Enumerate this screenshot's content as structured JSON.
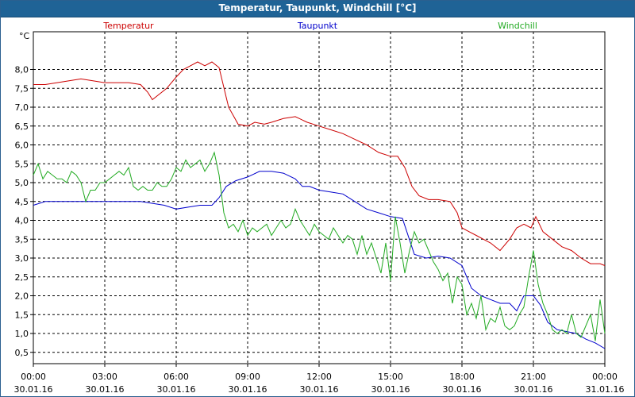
{
  "window": {
    "title": "Temperatur, Taupunkt, Windchill [°C]"
  },
  "chart_data": {
    "type": "line",
    "title": "Temperatur, Taupunkt, Windchill [°C]",
    "ylabel": "°C",
    "ylim": [
      0.2,
      9.0
    ],
    "xlim": [
      0,
      24
    ],
    "grid": true,
    "legend_position": "top",
    "yticks": [
      0.5,
      1.0,
      1.5,
      2.0,
      2.5,
      3.0,
      3.5,
      4.0,
      4.5,
      5.0,
      5.5,
      6.0,
      6.5,
      7.0,
      7.5,
      8.0
    ],
    "ytick_labels": [
      "0,5",
      "1,0",
      "1,5",
      "2,0",
      "2,5",
      "3,0",
      "3,5",
      "4,0",
      "4,5",
      "5,0",
      "5,5",
      "6,0",
      "6,5",
      "7,0",
      "7,5",
      "8,0"
    ],
    "xticks": [
      {
        "x": 0,
        "time": "00:00",
        "date": "30.01.16"
      },
      {
        "x": 3,
        "time": "03:00",
        "date": "30.01.16"
      },
      {
        "x": 6,
        "time": "06:00",
        "date": "30.01.16"
      },
      {
        "x": 9,
        "time": "09:00",
        "date": "30.01.16"
      },
      {
        "x": 12,
        "time": "12:00",
        "date": "30.01.16"
      },
      {
        "x": 15,
        "time": "15:00",
        "date": "30.01.16"
      },
      {
        "x": 18,
        "time": "18:00",
        "date": "30.01.16"
      },
      {
        "x": 21,
        "time": "21:00",
        "date": "30.01.16"
      },
      {
        "x": 24,
        "time": "00:00",
        "date": "31.01.16"
      }
    ],
    "series": [
      {
        "name": "Temperatur",
        "color": "#cc0000",
        "x": [
          0,
          0.5,
          1,
          1.5,
          2,
          2.5,
          3,
          3.5,
          4,
          4.5,
          4.8,
          5,
          5.3,
          5.6,
          6,
          6.3,
          6.6,
          6.9,
          7.2,
          7.5,
          7.8,
          8.2,
          8.6,
          9,
          9.3,
          9.7,
          10,
          10.5,
          11,
          11.5,
          12,
          12.5,
          13,
          13.5,
          14,
          14.5,
          15,
          15.3,
          15.6,
          15.9,
          16.2,
          16.6,
          17,
          17.5,
          17.8,
          18,
          18.3,
          18.6,
          18.9,
          19.2,
          19.6,
          20,
          20.3,
          20.6,
          20.9,
          21.1,
          21.4,
          21.8,
          22.2,
          22.6,
          23,
          23.4,
          23.8,
          24
        ],
        "values": [
          7.6,
          7.6,
          7.65,
          7.7,
          7.75,
          7.7,
          7.65,
          7.65,
          7.65,
          7.6,
          7.4,
          7.2,
          7.35,
          7.5,
          7.8,
          8.0,
          8.1,
          8.2,
          8.1,
          8.2,
          8.05,
          7.0,
          6.55,
          6.5,
          6.6,
          6.55,
          6.6,
          6.7,
          6.75,
          6.6,
          6.5,
          6.4,
          6.3,
          6.15,
          6.0,
          5.8,
          5.7,
          5.7,
          5.4,
          4.9,
          4.65,
          4.55,
          4.55,
          4.5,
          4.2,
          3.8,
          3.7,
          3.6,
          3.5,
          3.4,
          3.2,
          3.5,
          3.8,
          3.9,
          3.8,
          4.1,
          3.7,
          3.5,
          3.3,
          3.2,
          3.0,
          2.85,
          2.85,
          2.8
        ]
      },
      {
        "name": "Taupunkt",
        "color": "#0000cc",
        "x": [
          0,
          0.5,
          1,
          1.5,
          2,
          2.5,
          3,
          3.5,
          4,
          4.5,
          5,
          5.5,
          6,
          6.5,
          7,
          7.5,
          7.8,
          8.1,
          8.5,
          9,
          9.5,
          10,
          10.5,
          11,
          11.3,
          11.6,
          12,
          12.5,
          13,
          13.5,
          14,
          14.5,
          15,
          15.5,
          16,
          16.5,
          17,
          17.5,
          18,
          18.4,
          18.8,
          19.2,
          19.6,
          20,
          20.3,
          20.6,
          21,
          21.3,
          21.6,
          22,
          22.4,
          22.8,
          23.2,
          23.6,
          24
        ],
        "values": [
          4.4,
          4.5,
          4.5,
          4.5,
          4.5,
          4.5,
          4.5,
          4.5,
          4.5,
          4.5,
          4.45,
          4.4,
          4.3,
          4.35,
          4.4,
          4.4,
          4.6,
          4.9,
          5.05,
          5.15,
          5.3,
          5.3,
          5.25,
          5.1,
          4.9,
          4.9,
          4.8,
          4.75,
          4.7,
          4.5,
          4.3,
          4.2,
          4.1,
          4.05,
          3.1,
          3.0,
          3.05,
          3.0,
          2.8,
          2.2,
          2.0,
          1.9,
          1.8,
          1.8,
          1.6,
          2.0,
          2.0,
          1.75,
          1.3,
          1.1,
          1.05,
          1.0,
          0.85,
          0.75,
          0.6
        ]
      },
      {
        "name": "Windchill",
        "color": "#22aa22",
        "x": [
          0,
          0.2,
          0.4,
          0.6,
          0.8,
          1.0,
          1.2,
          1.4,
          1.6,
          1.8,
          2.0,
          2.2,
          2.4,
          2.6,
          2.8,
          3.0,
          3.2,
          3.4,
          3.6,
          3.8,
          4.0,
          4.2,
          4.4,
          4.6,
          4.8,
          5.0,
          5.2,
          5.4,
          5.6,
          5.8,
          6.0,
          6.2,
          6.4,
          6.6,
          6.8,
          7.0,
          7.2,
          7.4,
          7.6,
          7.8,
          8.0,
          8.2,
          8.4,
          8.6,
          8.8,
          9.0,
          9.2,
          9.4,
          9.6,
          9.8,
          10.0,
          10.2,
          10.4,
          10.6,
          10.8,
          11.0,
          11.2,
          11.4,
          11.6,
          11.8,
          12.0,
          12.2,
          12.4,
          12.6,
          12.8,
          13.0,
          13.2,
          13.4,
          13.6,
          13.8,
          14.0,
          14.2,
          14.4,
          14.6,
          14.8,
          15.0,
          15.2,
          15.4,
          15.6,
          15.8,
          16.0,
          16.2,
          16.4,
          16.6,
          16.8,
          17.0,
          17.2,
          17.4,
          17.6,
          17.8,
          18.0,
          18.2,
          18.4,
          18.6,
          18.8,
          19.0,
          19.2,
          19.4,
          19.6,
          19.8,
          20.0,
          20.2,
          20.4,
          20.6,
          20.8,
          21.0,
          21.2,
          21.4,
          21.6,
          21.8,
          22.0,
          22.2,
          22.4,
          22.6,
          22.8,
          23.0,
          23.2,
          23.4,
          23.6,
          23.8,
          24.0
        ],
        "values": [
          5.2,
          5.5,
          5.1,
          5.3,
          5.2,
          5.1,
          5.1,
          5.0,
          5.3,
          5.2,
          5.0,
          4.5,
          4.8,
          4.8,
          5.0,
          5.0,
          5.1,
          5.2,
          5.3,
          5.2,
          5.4,
          4.9,
          4.8,
          4.9,
          4.8,
          4.8,
          5.0,
          4.9,
          4.9,
          5.1,
          5.4,
          5.3,
          5.6,
          5.4,
          5.5,
          5.6,
          5.3,
          5.5,
          5.8,
          5.2,
          4.2,
          3.8,
          3.9,
          3.7,
          4.0,
          3.6,
          3.8,
          3.7,
          3.8,
          3.9,
          3.6,
          3.8,
          4.0,
          3.8,
          3.9,
          4.3,
          4.0,
          3.8,
          3.6,
          3.9,
          3.7,
          3.6,
          3.5,
          3.8,
          3.6,
          3.4,
          3.6,
          3.5,
          3.1,
          3.6,
          3.1,
          3.4,
          3.0,
          2.6,
          3.4,
          2.4,
          4.1,
          3.4,
          2.6,
          3.2,
          3.7,
          3.4,
          3.5,
          3.2,
          2.9,
          2.7,
          2.4,
          2.6,
          1.8,
          2.5,
          2.3,
          1.5,
          1.8,
          1.4,
          2.0,
          1.1,
          1.4,
          1.3,
          1.7,
          1.2,
          1.1,
          1.2,
          1.5,
          1.7,
          2.5,
          3.2,
          2.3,
          1.8,
          1.5,
          1.1,
          1.0,
          1.1,
          1.0,
          1.5,
          1.0,
          0.9,
          1.2,
          1.5,
          0.8,
          1.9,
          1.0
        ]
      }
    ]
  }
}
